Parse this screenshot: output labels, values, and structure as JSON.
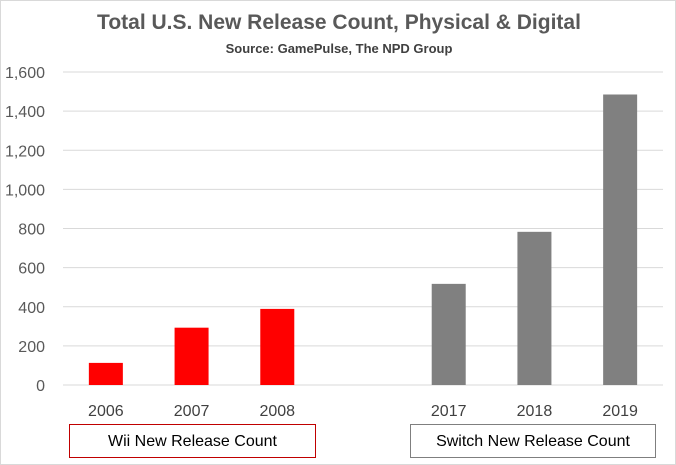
{
  "chart_data": {
    "type": "bar",
    "title": "Total U.S. New Release Count, Physical & Digital",
    "subtitle": "Source: GamePulse, The NPD Group",
    "ylim": [
      0,
      1600
    ],
    "yticks": [
      "0",
      "200",
      "400",
      "600",
      "800",
      "1,000",
      "1,200",
      "1,400",
      "1,600"
    ],
    "grid": true,
    "series": [
      {
        "name": "Wii New Release Count",
        "color": "#ff0000",
        "categories": [
          "2006",
          "2007",
          "2008"
        ],
        "values": [
          113,
          293,
          389
        ]
      },
      {
        "name": "Switch New Release Count",
        "color": "#808080",
        "categories": [
          "2017",
          "2018",
          "2019"
        ],
        "values": [
          517,
          783,
          1485
        ]
      }
    ],
    "legend": "bottom"
  }
}
